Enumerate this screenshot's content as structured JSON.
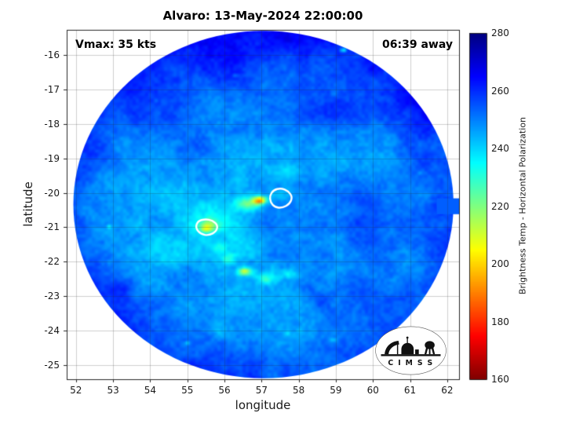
{
  "chart_data": {
    "type": "heatmap",
    "title": "Alvaro: 13-May-2024 22:00:00",
    "xlabel": "longitude",
    "ylabel": "latitude",
    "xlim": [
      51.75,
      62.32
    ],
    "ylim": [
      -25.41,
      -15.27
    ],
    "xticks": [
      52,
      53,
      54,
      55,
      56,
      57,
      58,
      59,
      60,
      61,
      62
    ],
    "yticks": [
      -16,
      -17,
      -18,
      -19,
      -20,
      -21,
      -22,
      -23,
      -24,
      -25
    ],
    "grid": true,
    "annotations": [
      {
        "text": "Vmax: 35 kts",
        "position": "top-left"
      },
      {
        "text": "06:39 away",
        "position": "top-right"
      }
    ],
    "colorbar": {
      "label": "Brightness Temp - Horizontal Polarization",
      "min": 160,
      "max": 280,
      "ticks": [
        160,
        180,
        200,
        220,
        240,
        260,
        280
      ],
      "colormap": "jet-reversed",
      "position": "right"
    },
    "swath": {
      "shape": "circular",
      "center": [
        57.05,
        -20.34
      ],
      "radius_lon": 5.12,
      "radius_lat": 5.04
    },
    "field": {
      "units": "K",
      "base_temp": 247,
      "features": [
        {
          "name": "eyewall-warm-core",
          "lon": 56.95,
          "lat": -20.22,
          "rlon": 0.3,
          "rlat": 0.18,
          "dT": -55
        },
        {
          "name": "warm-core-halo",
          "lon": 56.62,
          "lat": -20.32,
          "rlon": 0.55,
          "rlat": 0.3,
          "dT": -24
        },
        {
          "name": "east-green-patch",
          "lon": 57.45,
          "lat": -20.05,
          "rlon": 0.4,
          "rlat": 0.25,
          "dT": -10
        },
        {
          "name": "west-convective-cell",
          "lon": 55.55,
          "lat": -20.95,
          "rlon": 0.45,
          "rlat": 0.3,
          "dT": -26
        },
        {
          "name": "west-cell-core",
          "lon": 55.5,
          "lat": -21.05,
          "rlon": 0.22,
          "rlat": 0.14,
          "dT": -16
        },
        {
          "name": "rainband-a",
          "lon": 55.85,
          "lat": -21.6,
          "rlon": 0.3,
          "rlat": 0.3,
          "dT": -12
        },
        {
          "name": "rainband-b",
          "lon": 56.1,
          "lat": -21.9,
          "rlon": 0.3,
          "rlat": 0.28,
          "dT": -14
        },
        {
          "name": "rainband-c",
          "lon": 56.55,
          "lat": -22.28,
          "rlon": 0.32,
          "rlat": 0.18,
          "dT": -38
        },
        {
          "name": "rainband-d",
          "lon": 57.1,
          "lat": -22.5,
          "rlon": 0.45,
          "rlat": 0.25,
          "dT": -16
        },
        {
          "name": "rainband-e",
          "lon": 57.75,
          "lat": -22.35,
          "rlon": 0.4,
          "rlat": 0.25,
          "dT": -12
        },
        {
          "name": "central-warm-area-1",
          "lon": 55.9,
          "lat": -20.7,
          "rlon": 1.1,
          "rlat": 0.8,
          "dT": -9
        },
        {
          "name": "central-warm-area-2",
          "lon": 56.5,
          "lat": -21.5,
          "rlon": 0.9,
          "rlat": 0.7,
          "dT": -8
        },
        {
          "name": "north-arm",
          "lon": 57.6,
          "lat": -19.35,
          "rlon": 0.9,
          "rlat": 0.45,
          "dT": -8
        },
        {
          "name": "southwest-warm-area",
          "lon": 54.6,
          "lat": -22.0,
          "rlon": 1.6,
          "rlat": 1.4,
          "dT": -6
        },
        {
          "name": "cold-east",
          "lon": 59.9,
          "lat": -20.3,
          "rlon": 1.4,
          "rlat": 1.1,
          "dT": 7
        },
        {
          "name": "cold-northeast",
          "lon": 59.0,
          "lat": -17.6,
          "rlon": 1.5,
          "rlat": 1.0,
          "dT": 5
        },
        {
          "name": "cold-northwest",
          "lon": 54.6,
          "lat": -17.6,
          "rlon": 1.4,
          "rlat": 1.0,
          "dT": 5
        },
        {
          "name": "cold-southeast",
          "lon": 59.0,
          "lat": -23.0,
          "rlon": 1.2,
          "rlat": 0.9,
          "dT": 5
        },
        {
          "name": "cold-southwest",
          "lon": 53.3,
          "lat": -22.8,
          "rlon": 1.0,
          "rlat": 0.9,
          "dT": 4
        },
        {
          "name": "speckle-1",
          "lon": 60.85,
          "lat": -16.35,
          "rlon": 0.12,
          "rlat": 0.09,
          "dT": -26
        },
        {
          "name": "speckle-2",
          "lon": 59.2,
          "lat": -15.85,
          "rlon": 0.13,
          "rlat": 0.1,
          "dT": -24
        },
        {
          "name": "speckle-3",
          "lon": 58.95,
          "lat": -17.1,
          "rlon": 0.09,
          "rlat": 0.07,
          "dT": -18
        },
        {
          "name": "speckle-4",
          "lon": 61.3,
          "lat": -19.4,
          "rlon": 0.1,
          "rlat": 0.07,
          "dT": -14
        },
        {
          "name": "speckle-5",
          "lon": 52.9,
          "lat": -21.0,
          "rlon": 0.1,
          "rlat": 0.08,
          "dT": -14
        },
        {
          "name": "speckle-6",
          "lon": 58.9,
          "lat": -24.3,
          "rlon": 0.16,
          "rlat": 0.08,
          "dT": -16
        },
        {
          "name": "speckle-7",
          "lon": 55.0,
          "lat": -24.35,
          "rlon": 0.11,
          "rlat": 0.08,
          "dT": -14
        },
        {
          "name": "speckle-8",
          "lon": 57.7,
          "lat": -24.05,
          "rlon": 0.13,
          "rlat": 0.08,
          "dT": -14
        },
        {
          "name": "speckle-9",
          "lon": 54.15,
          "lat": -17.3,
          "rlon": 0.1,
          "rlat": 0.08,
          "dT": -12
        },
        {
          "name": "speckle-10",
          "lon": 56.3,
          "lat": -16.6,
          "rlon": 0.1,
          "rlat": 0.08,
          "dT": -12
        }
      ],
      "edge_patches": [
        {
          "lon0": 61.72,
          "lon1": 62.32,
          "lat0": -20.62,
          "lat1": -20.16,
          "temp": 254
        }
      ]
    },
    "contours": [
      {
        "color": "#ffffff",
        "points": [
          [
            57.32,
            -19.92
          ],
          [
            57.52,
            -19.86
          ],
          [
            57.72,
            -19.95
          ],
          [
            57.83,
            -20.12
          ],
          [
            57.76,
            -20.32
          ],
          [
            57.56,
            -20.44
          ],
          [
            57.36,
            -20.42
          ],
          [
            57.24,
            -20.28
          ],
          [
            57.22,
            -20.08
          ]
        ]
      },
      {
        "color": "#ffffff",
        "points": [
          [
            55.28,
            -20.82
          ],
          [
            55.48,
            -20.76
          ],
          [
            55.68,
            -20.8
          ],
          [
            55.82,
            -20.94
          ],
          [
            55.78,
            -21.12
          ],
          [
            55.58,
            -21.24
          ],
          [
            55.36,
            -21.2
          ],
          [
            55.22,
            -21.02
          ]
        ]
      }
    ]
  },
  "logo": {
    "text": "C I M S S"
  },
  "colors": {
    "background": "#ffffff",
    "axis": "#262626",
    "contour": "#ffffff",
    "title_text": "#000000"
  }
}
